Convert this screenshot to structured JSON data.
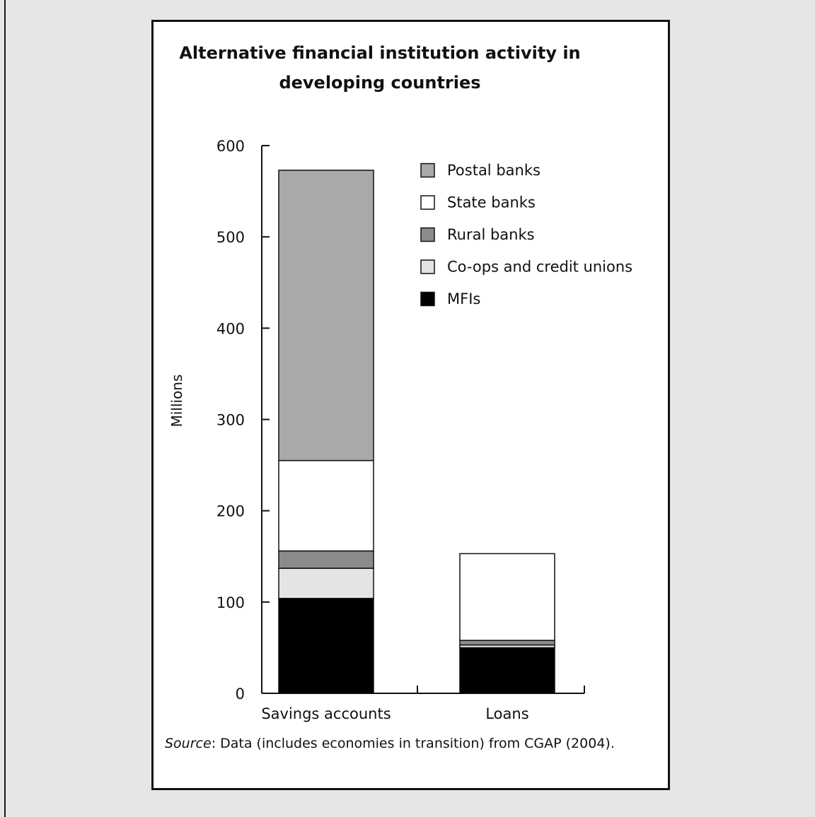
{
  "colors": {
    "postal": "#a8a9ab",
    "state": "#ffffff",
    "rural": "#8a8b8d",
    "coops": "#e3e4e5",
    "mfis": "#000000",
    "page_bg": "#e6e6e7"
  },
  "chart_data": {
    "type": "bar",
    "stacked": true,
    "title": [
      "Alternative financial institution activity in",
      "developing countries"
    ],
    "ylabel": "Millions",
    "xlabel": "",
    "ylim": [
      0,
      600
    ],
    "yticks": [
      0,
      100,
      200,
      300,
      400,
      500,
      600
    ],
    "categories": [
      "Savings accounts",
      "Loans"
    ],
    "series": [
      {
        "name": "MFIs",
        "key": "mfis",
        "values": [
          104,
          50
        ]
      },
      {
        "name": "Co-ops and credit unions",
        "key": "coops",
        "values": [
          33,
          3
        ]
      },
      {
        "name": "Rural banks",
        "key": "rural",
        "values": [
          19,
          5
        ]
      },
      {
        "name": "State banks",
        "key": "state",
        "values": [
          99,
          95
        ]
      },
      {
        "name": "Postal banks",
        "key": "postal",
        "values": [
          318,
          0
        ]
      }
    ],
    "legend": {
      "placement": "top-right",
      "order": [
        "postal",
        "state",
        "rural",
        "coops",
        "mfis"
      ]
    },
    "grid": false
  },
  "source": {
    "label": "Source",
    "text": ": Data (includes economies in transition) from CGAP (2004)."
  }
}
